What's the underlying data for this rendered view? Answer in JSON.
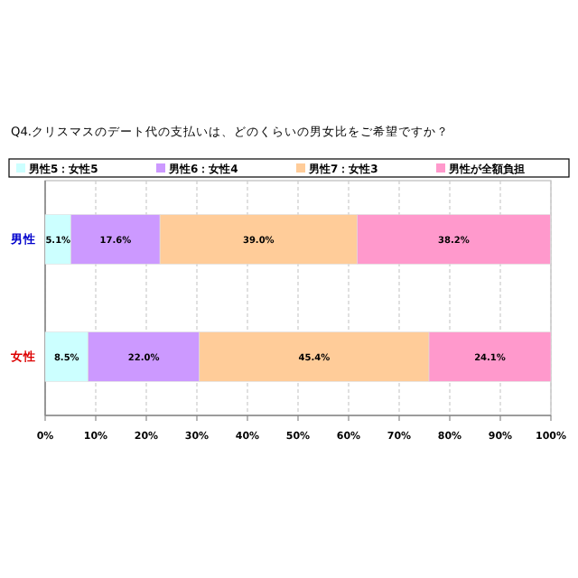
{
  "chart_data": {
    "type": "bar",
    "orientation": "horizontal",
    "stacked": true,
    "title": "Q4.クリスマスのデート代の支払いは、どのくらいの男女比をご希望ですか？",
    "categories": [
      "男性",
      "女性"
    ],
    "series": [
      {
        "name": "男性5：女性5",
        "color": "#ccffff",
        "values": [
          5.1,
          8.5
        ],
        "value_labels": [
          "5.1%",
          "8.5%"
        ]
      },
      {
        "name": "男性6：女性4",
        "color": "#cc99ff",
        "values": [
          17.6,
          22.0
        ],
        "value_labels": [
          "17.6%",
          "22.0%"
        ]
      },
      {
        "name": "男性7：女性3",
        "color": "#ffcc99",
        "values": [
          39.0,
          45.4
        ],
        "value_labels": [
          "39.0%",
          "45.4%"
        ]
      },
      {
        "name": "男性が全額負担",
        "color": "#ff99cc",
        "values": [
          38.2,
          24.1
        ],
        "value_labels": [
          "38.2%",
          "24.1%"
        ]
      }
    ],
    "xlim": [
      0,
      100
    ],
    "xticks": [
      {
        "value": 0,
        "label": "0%"
      },
      {
        "value": 10,
        "label": "10%"
      },
      {
        "value": 20,
        "label": "20%"
      },
      {
        "value": 30,
        "label": "30%"
      },
      {
        "value": 40,
        "label": "40%"
      },
      {
        "value": 50,
        "label": "50%"
      },
      {
        "value": 60,
        "label": "60%"
      },
      {
        "value": 70,
        "label": "70%"
      },
      {
        "value": 80,
        "label": "80%"
      },
      {
        "value": 90,
        "label": "90%"
      },
      {
        "value": 100,
        "label": "100%"
      }
    ],
    "grid": "x",
    "legend": "top"
  }
}
